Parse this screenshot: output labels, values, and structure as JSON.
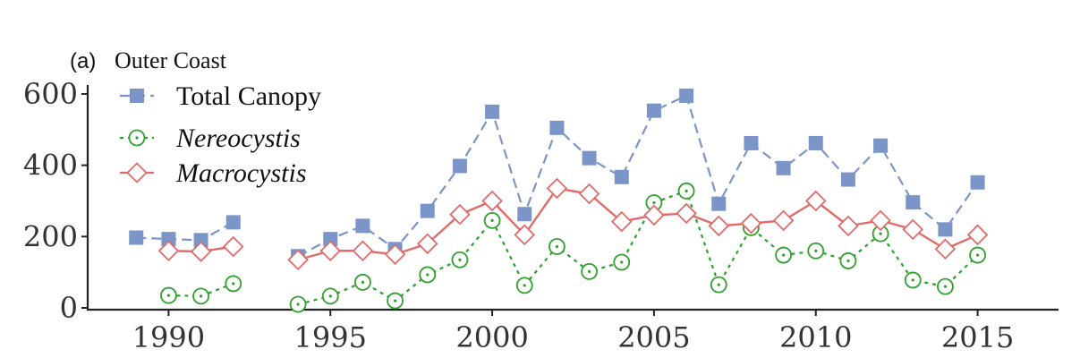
{
  "chart_data": {
    "type": "line",
    "panel_tag": "(a)",
    "title": "Outer Coast",
    "xlabel": "",
    "ylabel": "",
    "xlim": [
      1987.5,
      2017.5
    ],
    "ylim": [
      -5,
      625
    ],
    "x_ticks": [
      1990,
      1995,
      2000,
      2005,
      2010,
      2015
    ],
    "y_ticks": [
      0,
      200,
      400,
      600
    ],
    "grid": false,
    "legend_position": "top-left",
    "series": [
      {
        "name": "Total Canopy",
        "color": "#7b95c9",
        "marker": "filled-square",
        "line_style": "dashed",
        "italic": false,
        "points": [
          [
            1989,
            197
          ],
          [
            1990,
            193
          ],
          [
            1991,
            190
          ],
          [
            1992,
            240
          ],
          [
            1994,
            145
          ],
          [
            1995,
            193
          ],
          [
            1996,
            230
          ],
          [
            1997,
            165
          ],
          [
            1998,
            272
          ],
          [
            1999,
            398
          ],
          [
            2000,
            550
          ],
          [
            2001,
            263
          ],
          [
            2002,
            505
          ],
          [
            2003,
            420
          ],
          [
            2004,
            367
          ],
          [
            2005,
            553
          ],
          [
            2006,
            595
          ],
          [
            2007,
            292
          ],
          [
            2008,
            462
          ],
          [
            2009,
            392
          ],
          [
            2010,
            462
          ],
          [
            2011,
            360
          ],
          [
            2012,
            455
          ],
          [
            2013,
            296
          ],
          [
            2014,
            220
          ],
          [
            2015,
            352
          ]
        ]
      },
      {
        "name": "Nereocystis",
        "color": "#2ea02e",
        "marker": "open-circle-dot",
        "line_style": "dotted",
        "italic": true,
        "points": [
          [
            1990,
            35
          ],
          [
            1991,
            33
          ],
          [
            1992,
            68
          ],
          [
            1994,
            10
          ],
          [
            1995,
            33
          ],
          [
            1996,
            72
          ],
          [
            1997,
            20
          ],
          [
            1998,
            93
          ],
          [
            1999,
            135
          ],
          [
            2000,
            245
          ],
          [
            2001,
            63
          ],
          [
            2002,
            172
          ],
          [
            2003,
            102
          ],
          [
            2004,
            128
          ],
          [
            2005,
            295
          ],
          [
            2006,
            328
          ],
          [
            2007,
            65
          ],
          [
            2008,
            225
          ],
          [
            2009,
            148
          ],
          [
            2010,
            160
          ],
          [
            2011,
            132
          ],
          [
            2012,
            208
          ],
          [
            2013,
            78
          ],
          [
            2014,
            60
          ],
          [
            2015,
            148
          ]
        ]
      },
      {
        "name": "Macrocystis",
        "color": "#e06b6b",
        "marker": "open-diamond",
        "line_style": "solid",
        "italic": true,
        "points": [
          [
            1990,
            160
          ],
          [
            1991,
            158
          ],
          [
            1992,
            172
          ],
          [
            1994,
            135
          ],
          [
            1995,
            160
          ],
          [
            1996,
            160
          ],
          [
            1997,
            150
          ],
          [
            1998,
            180
          ],
          [
            1999,
            262
          ],
          [
            2000,
            300
          ],
          [
            2001,
            205
          ],
          [
            2002,
            335
          ],
          [
            2003,
            320
          ],
          [
            2004,
            242
          ],
          [
            2005,
            260
          ],
          [
            2006,
            265
          ],
          [
            2007,
            230
          ],
          [
            2008,
            237
          ],
          [
            2009,
            245
          ],
          [
            2010,
            300
          ],
          [
            2011,
            230
          ],
          [
            2012,
            245
          ],
          [
            2013,
            220
          ],
          [
            2014,
            165
          ],
          [
            2015,
            205
          ]
        ]
      }
    ]
  }
}
